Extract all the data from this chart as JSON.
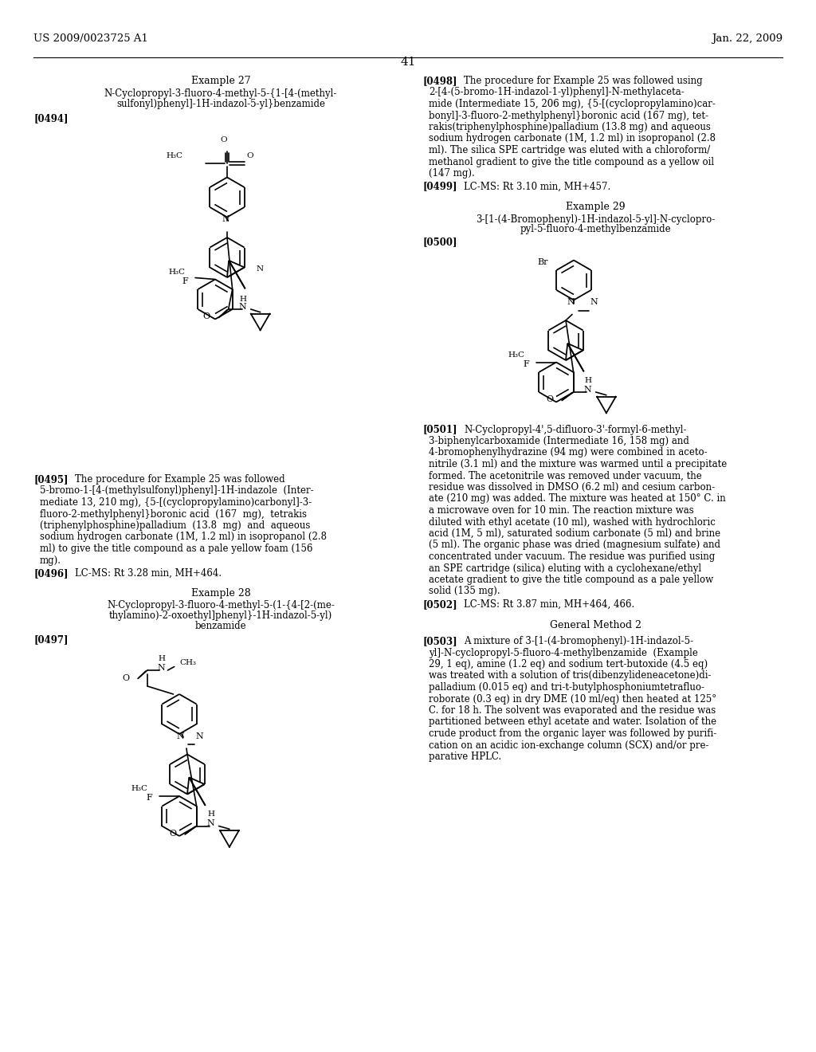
{
  "page_header_left": "US 2009/0023725 A1",
  "page_header_right": "Jan. 22, 2009",
  "page_number": "41",
  "bg": "#ffffff",
  "left_paragraphs": {
    "ex27_title": "Example 27",
    "ex27_name1": "N-Cyclopropyl-3-fluoro-4-methyl-5-{1-[4-(methyl-",
    "ex27_name2": "sulfonyl)phenyl]-1H-indazol-5-yl}benzamide",
    "tag0494": "[0494]",
    "tag0495": "[0495]",
    "para0495_lines": [
      "The procedure for Example 25 was followed",
      "5-bromo-1-[4-(methylsulfonyl)phenyl]-1H-indazole  (Inter-",
      "mediate 13, 210 mg), {5-[(cyclopropylamino)carbonyl]-3-",
      "fluoro-2-methylphenyl}boronic acid  (167  mg),  tetrakis",
      "(triphenylphosphine)palladium  (13.8  mg)  and  aqueous",
      "sodium hydrogen carbonate (1M, 1.2 ml) in isopropanol (2.8",
      "ml) to give the title compound as a pale yellow foam (156",
      "mg)."
    ],
    "tag0496": "[0496]",
    "para0496": "LC-MS: Rt 3.28 min, MH+464.",
    "ex28_title": "Example 28",
    "ex28_name1": "N-Cyclopropyl-3-fluoro-4-methyl-5-(1-{4-[2-(me-",
    "ex28_name2": "thylamino)-2-oxoethyl]phenyl}-1H-indazol-5-yl)",
    "ex28_name3": "benzamide",
    "tag0497": "[0497]"
  },
  "right_paragraphs": {
    "tag0498": "[0498]",
    "para0498_lines": [
      "The procedure for Example 25 was followed using",
      "2-[4-(5-bromo-1H-indazol-1-yl)phenyl]-N-methylaceta-",
      "mide (Intermediate 15, 206 mg), {5-[(cyclopropylamino)car-",
      "bonyl]-3-fluoro-2-methylphenyl}boronic acid (167 mg), tet-",
      "rakis(triphenylphosphine)palladium (13.8 mg) and aqueous",
      "sodium hydrogen carbonate (1M, 1.2 ml) in isopropanol (2.8",
      "ml). The silica SPE cartridge was eluted with a chloroform/",
      "methanol gradient to give the title compound as a yellow oil",
      "(147 mg)."
    ],
    "tag0499": "[0499]",
    "para0499": "LC-MS: Rt 3.10 min, MH+457.",
    "ex29_title": "Example 29",
    "ex29_name1": "3-[1-(4-Bromophenyl)-1H-indazol-5-yl]-N-cyclopro-",
    "ex29_name2": "pyl-5-fluoro-4-methylbenzamide",
    "tag0500": "[0500]",
    "tag0501": "[0501]",
    "para0501_lines": [
      "N-Cyclopropyl-4',5-difluoro-3'-formyl-6-methyl-",
      "3-biphenylcarboxamide (Intermediate 16, 158 mg) and",
      "4-bromophenylhydrazine (94 mg) were combined in aceto-",
      "nitrile (3.1 ml) and the mixture was warmed until a precipitate",
      "formed. The acetonitrile was removed under vacuum, the",
      "residue was dissolved in DMSO (6.2 ml) and cesium carbon-",
      "ate (210 mg) was added. The mixture was heated at 150° C. in",
      "a microwave oven for 10 min. The reaction mixture was",
      "diluted with ethyl acetate (10 ml), washed with hydrochloric",
      "acid (1M, 5 ml), saturated sodium carbonate (5 ml) and brine",
      "(5 ml). The organic phase was dried (magnesium sulfate) and",
      "concentrated under vacuum. The residue was purified using",
      "an SPE cartridge (silica) eluting with a cyclohexane/ethyl",
      "acetate gradient to give the title compound as a pale yellow",
      "solid (135 mg)."
    ],
    "tag0502": "[0502]",
    "para0502": "LC-MS: Rt 3.87 min, MH+464, 466.",
    "gm2_title": "General Method 2",
    "tag0503": "[0503]",
    "para0503_lines": [
      "A mixture of 3-[1-(4-bromophenyl)-1H-indazol-5-",
      "yl]-N-cyclopropyl-5-fluoro-4-methylbenzamide  (Example",
      "29, 1 eq), amine (1.2 eq) and sodium tert-butoxide (4.5 eq)",
      "was treated with a solution of tris(dibenzylideneacetone)di-",
      "palladium (0.015 eq) and tri-t-butylphosphoniumtetrafluo-",
      "roborate (0.3 eq) in dry DME (10 ml/eq) then heated at 125°",
      "C. for 18 h. The solvent was evaporated and the residue was",
      "partitioned between ethyl acetate and water. Isolation of the",
      "crude product from the organic layer was followed by purifi-",
      "cation on an acidic ion-exchange column (SCX) and/or pre-",
      "parative HPLC."
    ]
  }
}
